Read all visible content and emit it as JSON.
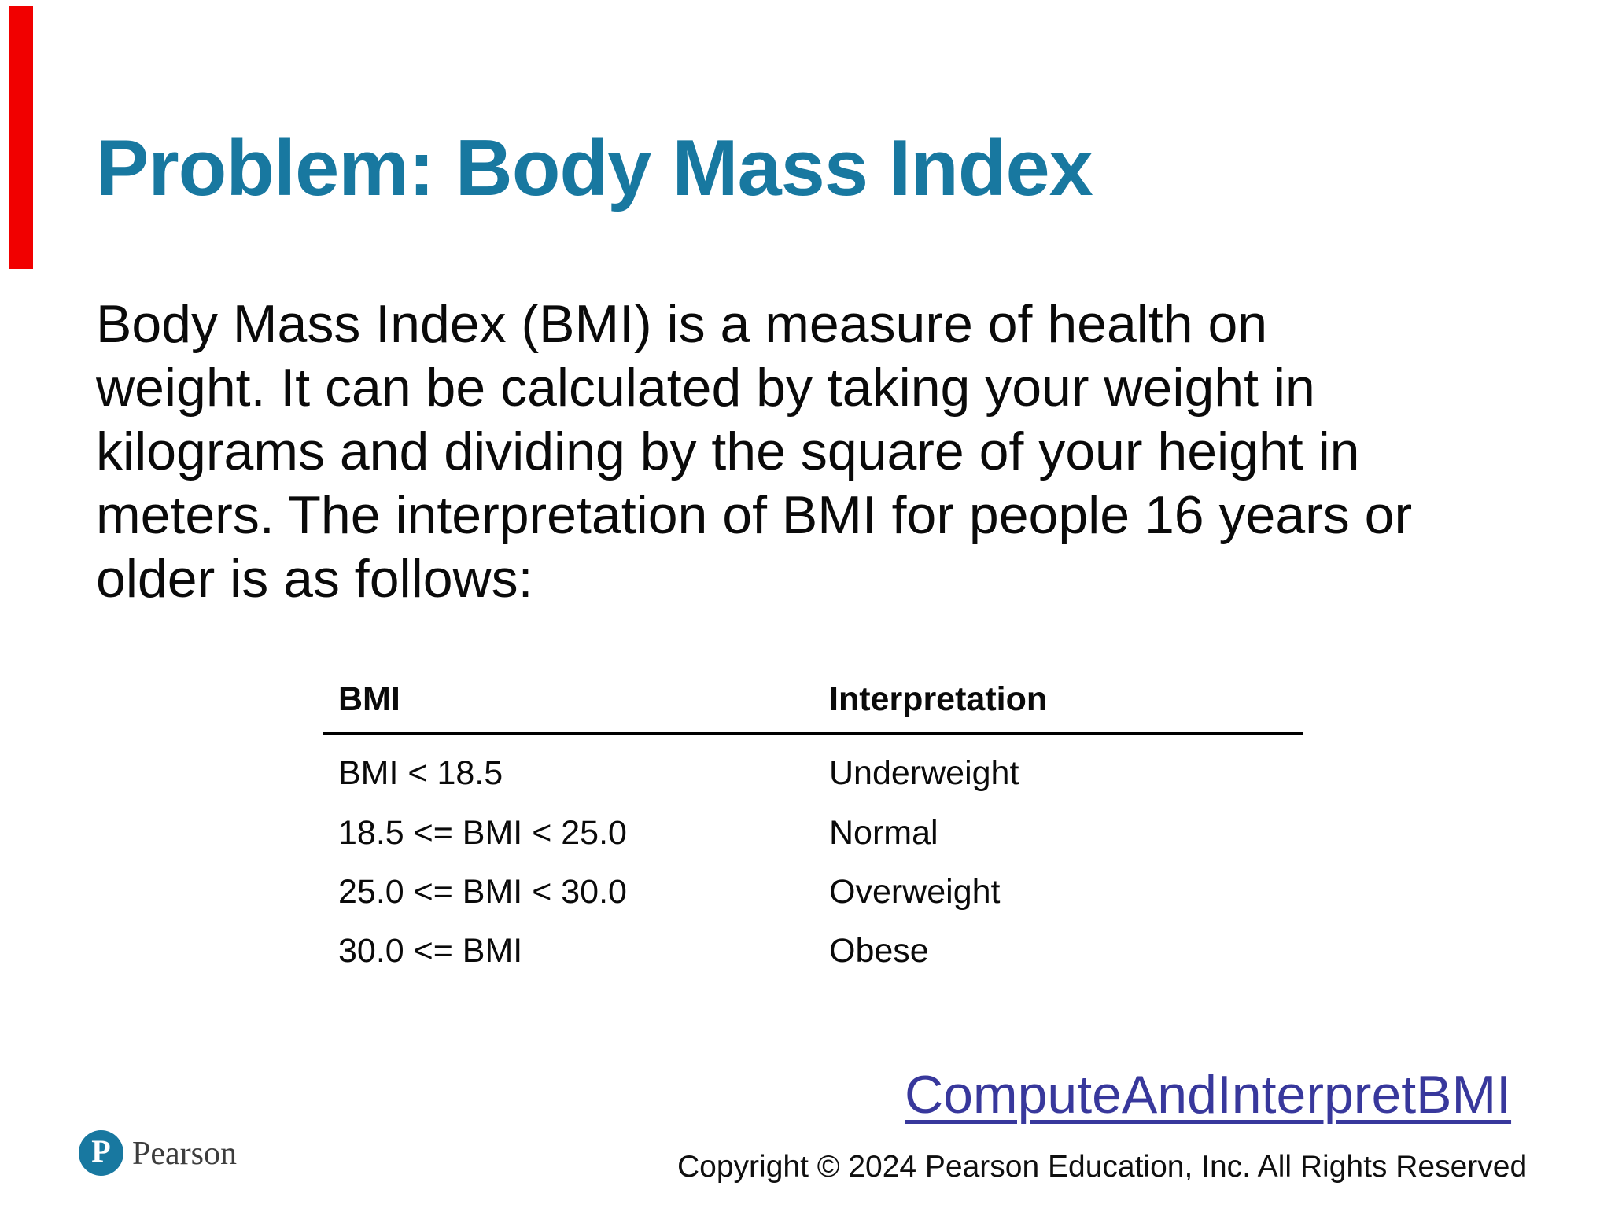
{
  "slide": {
    "title": "Problem: Body Mass Index",
    "paragraph_lines": [
      "Body Mass Index (BMI) is a measure of health on",
      "weight. It can be calculated by taking your weight in",
      "kilograms and dividing by the square of your height in",
      "meters. The interpretation of BMI for people 16 years or",
      "older is as follows:"
    ],
    "table": {
      "col_headers": [
        "BMI",
        "Interpretation"
      ],
      "rows": [
        {
          "bmi": "BMI < 18.5",
          "interpretation": "Underweight"
        },
        {
          "bmi": "18.5 <= BMI < 25.0",
          "interpretation": "Normal"
        },
        {
          "bmi": "25.0 <= BMI < 30.0",
          "interpretation": "Overweight"
        },
        {
          "bmi": "30.0 <= BMI",
          "interpretation": "Obese"
        }
      ]
    },
    "link": {
      "label": "ComputeAndInterpretBMI"
    },
    "footer": {
      "copyright": "Copyright © 2024 Pearson Education, Inc. All Rights Reserved"
    },
    "brand": {
      "wordmark": "Pearson",
      "monogram": "P"
    },
    "colors": {
      "title": "#1878a0",
      "link": "#38389c",
      "accent_bar": "#f10000",
      "logo_circle": "#1878a0",
      "body_text": "#0a0a0a",
      "wordmark": "#3d3d3d"
    }
  }
}
